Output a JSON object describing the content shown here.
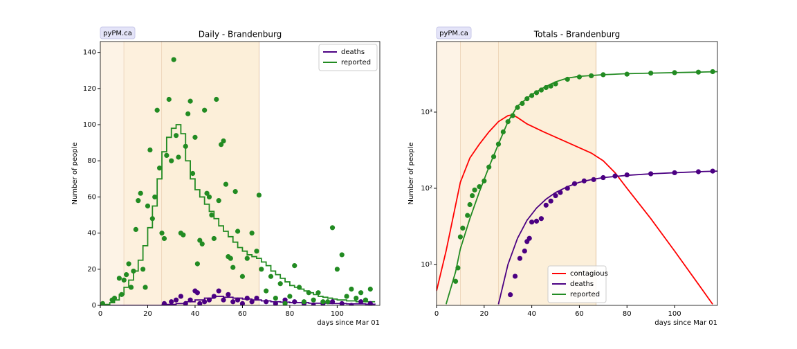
{
  "chart_data": [
    {
      "type": "line",
      "title": "Daily - Brandenburg",
      "badge": "pyPM.ca",
      "xlabel": "days since Mar 01",
      "ylabel": "Number of people",
      "xlim": [
        0,
        118
      ],
      "ylim": [
        0,
        146
      ],
      "xticks": [
        0,
        20,
        40,
        60,
        80,
        100
      ],
      "yticks": [
        0,
        20,
        40,
        60,
        80,
        100,
        120,
        140
      ],
      "legend": "upper right",
      "spans": [
        {
          "start": 0,
          "end": 10,
          "color": "#fdf3e6"
        },
        {
          "start": 10,
          "end": 26,
          "color": "#fdf0dd"
        },
        {
          "start": 26,
          "end": 67,
          "color": "#fcefd9"
        }
      ],
      "series": [
        {
          "name": "deaths",
          "color": "#4b0082",
          "kind": "step",
          "x": [
            0,
            24,
            26,
            28,
            32,
            36,
            40,
            44,
            48,
            52,
            56,
            60,
            64,
            68,
            72,
            76,
            80,
            88,
            96,
            104,
            112,
            116
          ],
          "values": [
            0,
            0,
            0.2,
            0.5,
            1,
            2,
            3,
            4,
            5,
            4.5,
            4,
            3.5,
            3,
            2.5,
            2,
            1.8,
            1.5,
            1.2,
            1,
            0.8,
            0.6,
            0.5
          ]
        },
        {
          "name": "reported",
          "color": "#228b22",
          "kind": "step",
          "x": [
            0,
            2,
            4,
            6,
            8,
            10,
            12,
            14,
            16,
            18,
            20,
            22,
            24,
            26,
            28,
            30,
            32,
            34,
            36,
            38,
            40,
            42,
            44,
            46,
            48,
            50,
            52,
            54,
            56,
            58,
            60,
            62,
            64,
            66,
            68,
            70,
            72,
            74,
            76,
            78,
            80,
            82,
            84,
            86,
            88,
            90,
            92,
            94,
            96,
            98,
            100,
            102,
            104,
            106,
            108,
            110,
            112,
            114,
            116
          ],
          "values": [
            0,
            0.5,
            1.5,
            3,
            6,
            10,
            14,
            19,
            25,
            33,
            43,
            55,
            70,
            85,
            93,
            98,
            100,
            95,
            80,
            70,
            64,
            60,
            56,
            52,
            48,
            44,
            41,
            38,
            35,
            32,
            30,
            28,
            27,
            26,
            24,
            22,
            19,
            17,
            15,
            13,
            11,
            10,
            9,
            8,
            7,
            6,
            5,
            4.5,
            4,
            3.5,
            3,
            3,
            2.5,
            2.5,
            2,
            2,
            2,
            2,
            2
          ]
        },
        {
          "color": "#4b0082",
          "kind": "scatter",
          "x": [
            27,
            30,
            32,
            34,
            36,
            38,
            40,
            41,
            42,
            44,
            46,
            48,
            50,
            52,
            54,
            56,
            58,
            60,
            62,
            64,
            66,
            70,
            74,
            78,
            82,
            86,
            90,
            94,
            98,
            102,
            106,
            110,
            114
          ],
          "values": [
            1,
            2,
            3,
            5,
            1,
            3,
            8,
            7,
            1,
            2,
            3,
            5,
            8,
            3,
            6,
            2,
            3,
            1,
            4,
            2,
            4,
            2,
            1,
            3,
            2,
            1,
            0,
            1,
            2,
            1,
            0,
            2,
            1
          ]
        },
        {
          "color": "#228b22",
          "kind": "scatter",
          "x": [
            1,
            5,
            6,
            8,
            9,
            10,
            11,
            12,
            13,
            14,
            15,
            16,
            17,
            18,
            19,
            20,
            21,
            22,
            23,
            24,
            25,
            26,
            27,
            28,
            29,
            30,
            31,
            32,
            33,
            34,
            35,
            36,
            37,
            38,
            39,
            40,
            41,
            42,
            43,
            44,
            45,
            46,
            47,
            48,
            49,
            50,
            51,
            52,
            53,
            54,
            55,
            56,
            57,
            58,
            60,
            62,
            64,
            66,
            67,
            68,
            70,
            72,
            74,
            76,
            78,
            80,
            82,
            84,
            86,
            88,
            90,
            92,
            94,
            96,
            98,
            100,
            102,
            104,
            106,
            108,
            110,
            112,
            114
          ],
          "values": [
            1,
            3,
            4,
            15,
            6,
            14,
            17,
            23,
            10,
            19,
            42,
            58,
            62,
            20,
            10,
            55,
            86,
            48,
            60,
            108,
            76,
            40,
            37,
            83,
            114,
            80,
            136,
            94,
            82,
            40,
            39,
            88,
            106,
            113,
            73,
            93,
            23,
            36,
            34,
            108,
            62,
            60,
            50,
            37,
            114,
            58,
            89,
            91,
            67,
            27,
            26,
            21,
            63,
            41,
            16,
            26,
            40,
            30,
            61,
            20,
            8,
            16,
            4,
            12,
            1,
            5,
            22,
            10,
            2,
            7,
            3,
            7,
            2,
            2,
            43,
            20,
            28,
            5,
            9,
            4,
            7,
            3,
            9
          ]
        }
      ]
    },
    {
      "type": "line",
      "title": "Totals - Brandenburg",
      "badge": "pyPM.ca",
      "xlabel": "days since Mar 01",
      "ylabel": "Number of people",
      "xlim": [
        0,
        118
      ],
      "ylim": [
        2.9,
        8450
      ],
      "yscale": "log",
      "xticks": [
        0,
        20,
        40,
        60,
        80,
        100
      ],
      "yticks": [
        {
          "value": 10,
          "label": "10¹"
        },
        {
          "value": 100,
          "label": "10²"
        },
        {
          "value": 1000,
          "label": "10³"
        }
      ],
      "legend": "lower center",
      "spans": [
        {
          "start": 0,
          "end": 10,
          "color": "#fdf3e6"
        },
        {
          "start": 10,
          "end": 26,
          "color": "#fdf0dd"
        },
        {
          "start": 26,
          "end": 67,
          "color": "#fcefd9"
        }
      ],
      "series": [
        {
          "name": "contagious",
          "color": "#ff0000",
          "kind": "line",
          "x": [
            0,
            4,
            8,
            10,
            14,
            18,
            22,
            26,
            30,
            32,
            34,
            38,
            45,
            55,
            65,
            70,
            75,
            80,
            90,
            100,
            110,
            116
          ],
          "values": [
            4.5,
            15,
            60,
            120,
            250,
            380,
            550,
            750,
            900,
            920,
            850,
            700,
            550,
            400,
            290,
            230,
            160,
            100,
            40,
            15,
            5.5,
            3
          ]
        },
        {
          "name": "deaths",
          "color": "#4b0082",
          "kind": "line",
          "x": [
            26,
            30,
            34,
            38,
            42,
            46,
            50,
            55,
            60,
            65,
            70,
            80,
            90,
            100,
            110,
            118
          ],
          "values": [
            3,
            10,
            22,
            38,
            55,
            72,
            88,
            105,
            120,
            130,
            138,
            148,
            155,
            160,
            165,
            168
          ]
        },
        {
          "name": "reported",
          "color": "#228b22",
          "kind": "line",
          "x": [
            4,
            8,
            10,
            14,
            18,
            22,
            26,
            30,
            34,
            40,
            45,
            50,
            55,
            60,
            70,
            80,
            90,
            100,
            110,
            118
          ],
          "values": [
            3,
            8,
            16,
            40,
            90,
            190,
            380,
            750,
            1200,
            1700,
            2100,
            2500,
            2800,
            2950,
            3100,
            3200,
            3250,
            3300,
            3350,
            3400
          ]
        },
        {
          "color": "#4b0082",
          "kind": "scatter",
          "x": [
            31,
            33,
            35,
            37,
            38,
            39,
            40,
            42,
            44,
            46,
            48,
            50,
            52,
            55,
            58,
            62,
            66,
            70,
            75,
            80,
            90,
            100,
            110,
            116
          ],
          "values": [
            4,
            7,
            12,
            15,
            20,
            22,
            36,
            37,
            40,
            60,
            68,
            80,
            88,
            100,
            115,
            125,
            130,
            138,
            145,
            150,
            155,
            160,
            165,
            168
          ]
        },
        {
          "color": "#228b22",
          "kind": "scatter",
          "x": [
            8,
            9,
            10,
            11,
            13,
            14,
            15,
            16,
            18,
            20,
            22,
            24,
            26,
            28,
            30,
            32,
            34,
            36,
            38,
            40,
            42,
            44,
            46,
            48,
            50,
            55,
            60,
            65,
            70,
            80,
            90,
            100,
            110,
            116
          ],
          "values": [
            6,
            9,
            23,
            30,
            44,
            61,
            80,
            95,
            105,
            125,
            190,
            260,
            380,
            550,
            750,
            900,
            1150,
            1300,
            1500,
            1650,
            1800,
            1950,
            2100,
            2200,
            2350,
            2700,
            2900,
            3000,
            3100,
            3150,
            3250,
            3300,
            3350,
            3400
          ]
        }
      ]
    }
  ]
}
